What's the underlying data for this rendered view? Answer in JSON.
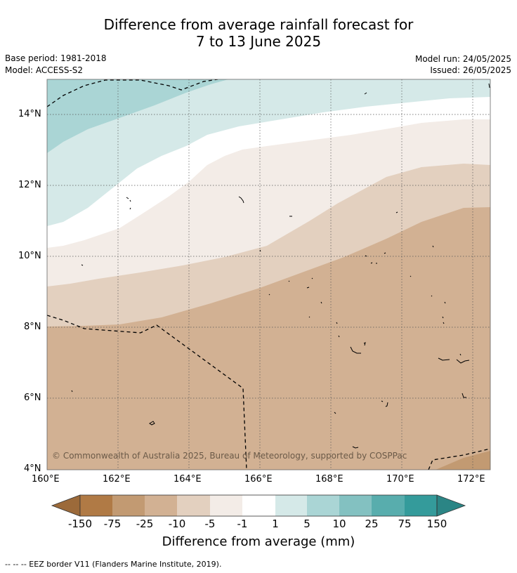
{
  "title": {
    "line1": "Difference from average rainfall forecast for",
    "line2": "7 to 13 June 2025"
  },
  "meta": {
    "base_period": "Base period: 1981-2018",
    "model": "Model: ACCESS-S2",
    "model_run": "Model run: 24/05/2025",
    "issued": "Issued: 26/05/2025"
  },
  "map": {
    "copyright": "© Commonwealth of Australia 2025, Bureau of Meteorology, supported by COSPPac",
    "x_ticks": [
      "160°E",
      "162°E",
      "164°E",
      "166°E",
      "168°E",
      "170°E",
      "172°E"
    ],
    "y_ticks": [
      "14°N",
      "12°N",
      "10°N",
      "8°N",
      "6°N",
      "4°N"
    ],
    "extent": {
      "lon_min": 160,
      "lon_max": 172.5,
      "lat_min": 4,
      "lat_max": 15
    }
  },
  "colorbar": {
    "title": "Difference from average (mm)",
    "tick_labels": [
      "-150",
      "-75",
      "-25",
      "-10",
      "-5",
      "-1",
      "1",
      "5",
      "10",
      "25",
      "75",
      "150"
    ],
    "colors": [
      "#9c6a3a",
      "#b07a45",
      "#c29a72",
      "#d2b193",
      "#e3d0bf",
      "#f3ece7",
      "#ffffff",
      "#d5e9e8",
      "#aad5d5",
      "#83c1c1",
      "#58adad",
      "#349b9b",
      "#2b8585"
    ]
  },
  "footnote": "--  --  -- EEZ border V11 (Flanders Marine Institute, 2019)."
}
